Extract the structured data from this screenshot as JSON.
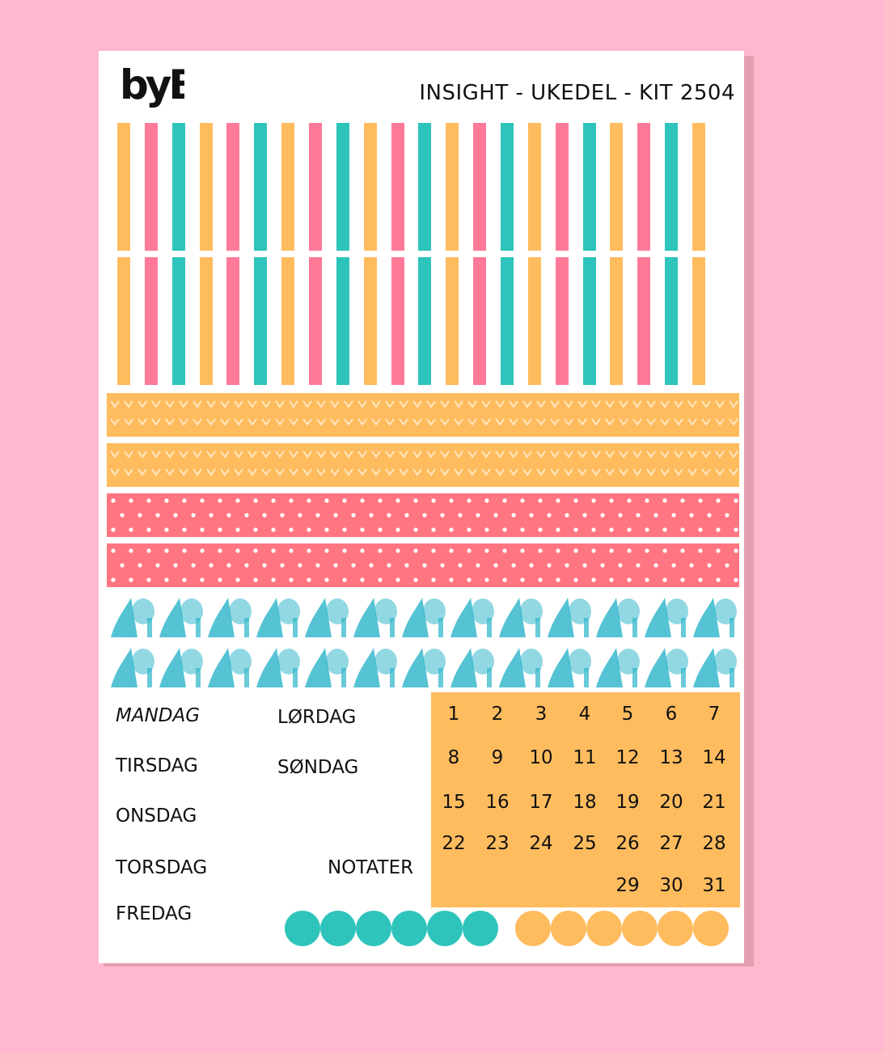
{
  "colors": {
    "background": "#ffb8cd",
    "orange": "#ffbc5e",
    "pink": "#ff7a99",
    "teal": "#2ec4bc",
    "coral": "#ff7682",
    "watercolor_teal": "#37b8cc"
  },
  "header": {
    "logo_text": "byB",
    "title": "INSIGHT - UKEDEL - KIT 2504"
  },
  "stripes": {
    "color_pattern": [
      "orange",
      "pink",
      "teal",
      "orange",
      "pink",
      "teal",
      "orange",
      "pink",
      "teal",
      "orange",
      "pink",
      "teal",
      "orange",
      "pink",
      "teal",
      "orange",
      "pink",
      "teal",
      "orange",
      "pink",
      "teal",
      "orange"
    ]
  },
  "washi_strips": [
    {
      "pattern": "hearts",
      "color": "orange"
    },
    {
      "pattern": "hearts",
      "color": "orange"
    },
    {
      "pattern": "polka-dots",
      "color": "coral"
    },
    {
      "pattern": "polka-dots",
      "color": "coral"
    },
    {
      "pattern": "watercolor",
      "color": "watercolor_teal"
    },
    {
      "pattern": "watercolor",
      "color": "watercolor_teal"
    }
  ],
  "days": {
    "mandag": "MANDAG",
    "tirsdag": "TIRSDAG",
    "onsdag": "ONSDAG",
    "torsdag": "TORSDAG",
    "fredag": "FREDAG",
    "lordag": "LØRDAG",
    "sondag": "SØNDAG"
  },
  "notater": "NOTATER",
  "calendar": {
    "rows": [
      [
        "1",
        "2",
        "3",
        "4",
        "5",
        "6",
        "7"
      ],
      [
        "8",
        "9",
        "10",
        "11",
        "12",
        "13",
        "14"
      ],
      [
        "15",
        "16",
        "17",
        "18",
        "19",
        "20",
        "21"
      ],
      [
        "22",
        "23",
        "24",
        "25",
        "26",
        "27",
        "28"
      ],
      [
        "",
        "",
        "",
        "",
        "29",
        "30",
        "31"
      ]
    ]
  },
  "dots": {
    "teal_count": 6,
    "orange_count": 6
  }
}
